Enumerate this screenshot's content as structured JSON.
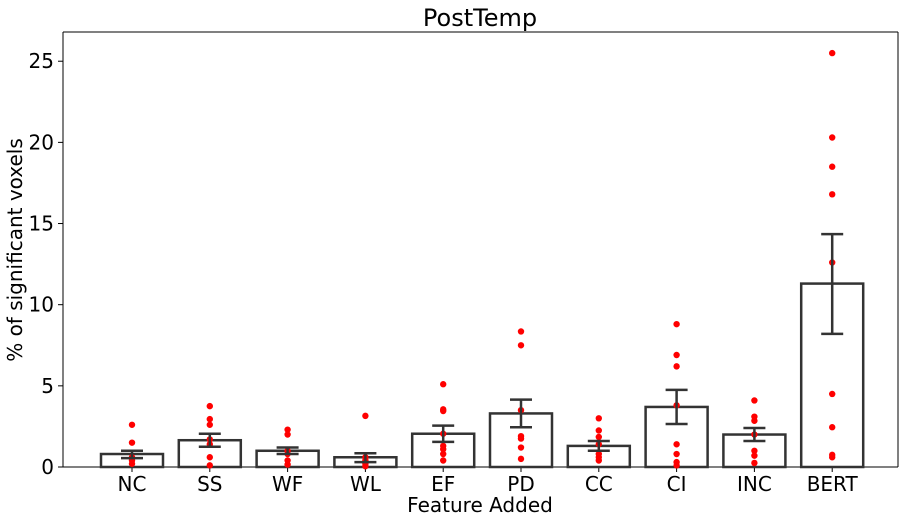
{
  "chart_data": {
    "type": "bar",
    "title": "PostTemp",
    "xlabel": "Feature Added",
    "ylabel": "% of significant voxels",
    "ylim": [
      0,
      26.8
    ],
    "yticks": [
      0,
      5,
      10,
      15,
      20,
      25
    ],
    "grid": false,
    "categories": [
      "NC",
      "SS",
      "WF",
      "WL",
      "EF",
      "PD",
      "CC",
      "CI",
      "INC",
      "BERT"
    ],
    "values": [
      0.8,
      1.65,
      1.0,
      0.6,
      2.05,
      3.3,
      1.3,
      3.7,
      2.0,
      11.3
    ],
    "error_low": [
      0.55,
      1.25,
      0.8,
      0.3,
      1.55,
      2.45,
      1.0,
      2.65,
      1.6,
      8.2
    ],
    "error_high": [
      1.0,
      2.05,
      1.2,
      0.85,
      2.55,
      4.15,
      1.6,
      4.75,
      2.4,
      14.35
    ],
    "points": [
      [
        2.6,
        1.5,
        0.6,
        0.4,
        0.2
      ],
      [
        3.75,
        2.95,
        2.6,
        1.7,
        1.4,
        0.6,
        0.1
      ],
      [
        2.3,
        2.0,
        1.0,
        0.8,
        0.4,
        0.15
      ],
      [
        3.15,
        0.6,
        0.4,
        0.2,
        0.05
      ],
      [
        5.1,
        3.55,
        3.45,
        2.05,
        1.3,
        1.1,
        0.8,
        0.4
      ],
      [
        8.35,
        7.5,
        3.5,
        1.9,
        1.75,
        1.2,
        0.5
      ],
      [
        3.0,
        2.25,
        1.85,
        1.4,
        0.8,
        0.6,
        0.4
      ],
      [
        8.8,
        6.9,
        6.2,
        3.8,
        1.4,
        0.8,
        0.3,
        0.1
      ],
      [
        4.1,
        3.1,
        2.85,
        2.0,
        1.0,
        0.7,
        0.25
      ],
      [
        25.5,
        20.3,
        18.5,
        16.8,
        12.6,
        4.5,
        2.45,
        0.75,
        0.6
      ]
    ],
    "colors": {
      "bar_fill": "#ffffff",
      "bar_edge": "#333333",
      "point": "#ff0000",
      "error": "#333333"
    }
  }
}
